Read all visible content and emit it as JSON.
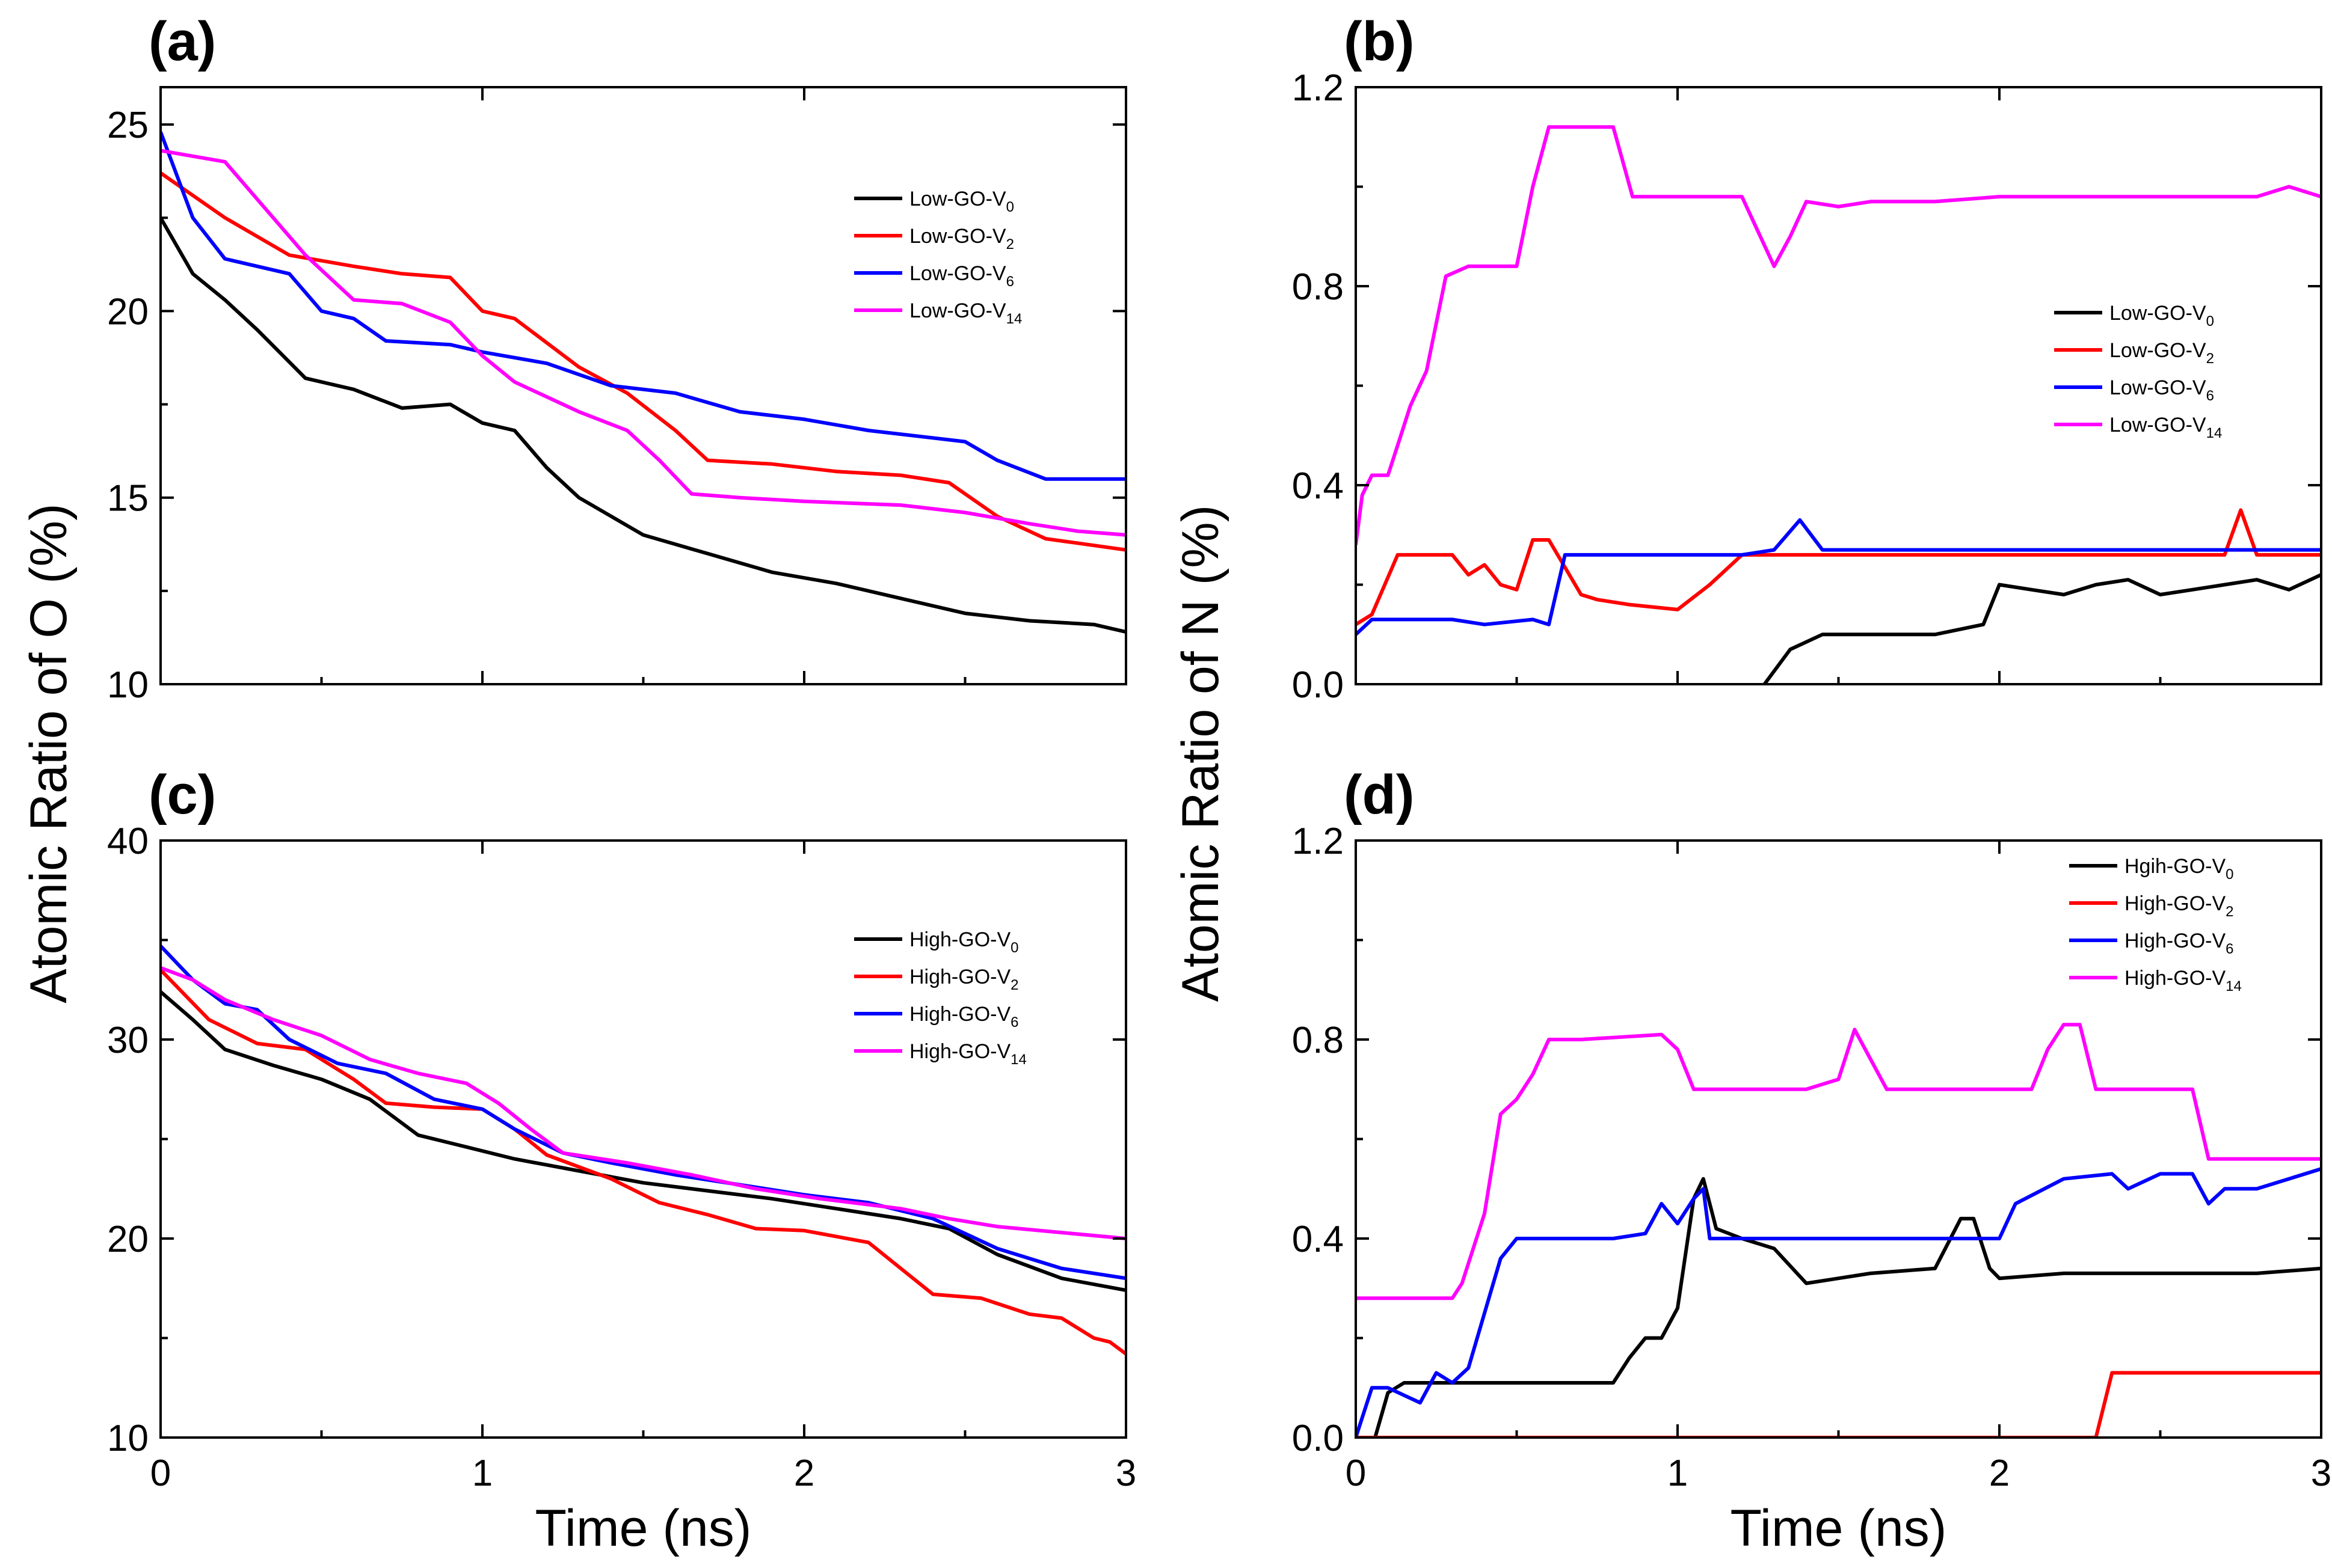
{
  "figure": {
    "ylabel_left": "Atomic Ratio of O (%)",
    "ylabel_right": "Atomic Ratio of N (%)",
    "xlabel": "Time (ns)"
  },
  "chart_data": [
    {
      "id": "a",
      "type": "line",
      "panel_label": "(a)",
      "xlabel": "",
      "ylabel": "Atomic Ratio of O (%)",
      "xlim": [
        0,
        3
      ],
      "ylim": [
        10,
        26
      ],
      "xticks": [
        0,
        1,
        2,
        3
      ],
      "yticks": [
        10,
        15,
        20,
        25
      ],
      "show_xtick_labels": false,
      "legend_position": "top-right",
      "series": [
        {
          "name": "Low-GO-V0",
          "base": "Low-GO-V",
          "sub": "0",
          "color": "#000000",
          "x": [
            0,
            0.1,
            0.2,
            0.3,
            0.45,
            0.6,
            0.75,
            0.9,
            1.0,
            1.1,
            1.2,
            1.3,
            1.5,
            1.7,
            1.9,
            2.1,
            2.3,
            2.5,
            2.7,
            2.9,
            3.0
          ],
          "y": [
            22.5,
            21.0,
            20.3,
            19.5,
            18.2,
            17.9,
            17.4,
            17.5,
            17.0,
            16.8,
            15.8,
            15.0,
            14.0,
            13.5,
            13.0,
            12.7,
            12.3,
            11.9,
            11.7,
            11.6,
            11.4
          ]
        },
        {
          "name": "Low-GO-V2",
          "base": "Low-GO-V",
          "sub": "2",
          "color": "#ff0000",
          "x": [
            0,
            0.2,
            0.4,
            0.6,
            0.75,
            0.9,
            1.0,
            1.1,
            1.3,
            1.45,
            1.6,
            1.7,
            1.9,
            2.1,
            2.3,
            2.45,
            2.6,
            2.75,
            3.0
          ],
          "y": [
            23.7,
            22.5,
            21.5,
            21.2,
            21.0,
            20.9,
            20.0,
            19.8,
            18.5,
            17.8,
            16.8,
            16.0,
            15.9,
            15.7,
            15.6,
            15.4,
            14.5,
            13.9,
            13.6
          ]
        },
        {
          "name": "Low-GO-V6",
          "base": "Low-GO-V",
          "sub": "6",
          "color": "#0000ff",
          "x": [
            0,
            0.1,
            0.2,
            0.4,
            0.5,
            0.6,
            0.7,
            0.9,
            1.0,
            1.2,
            1.4,
            1.6,
            1.8,
            2.0,
            2.2,
            2.5,
            2.6,
            2.75,
            3.0
          ],
          "y": [
            24.8,
            22.5,
            21.4,
            21.0,
            20.0,
            19.8,
            19.2,
            19.1,
            18.9,
            18.6,
            18.0,
            17.8,
            17.3,
            17.1,
            16.8,
            16.5,
            16.0,
            15.5,
            15.5
          ]
        },
        {
          "name": "Low-GO-V14",
          "base": "Low-GO-V",
          "sub": "14",
          "color": "#ff00ff",
          "x": [
            0,
            0.2,
            0.3,
            0.45,
            0.6,
            0.75,
            0.9,
            1.0,
            1.1,
            1.3,
            1.45,
            1.55,
            1.65,
            1.8,
            2.0,
            2.3,
            2.5,
            2.7,
            2.85,
            3.0
          ],
          "y": [
            24.3,
            24.0,
            23.0,
            21.5,
            20.3,
            20.2,
            19.7,
            18.8,
            18.1,
            17.3,
            16.8,
            16.0,
            15.1,
            15.0,
            14.9,
            14.8,
            14.6,
            14.3,
            14.1,
            14.0
          ]
        }
      ]
    },
    {
      "id": "b",
      "type": "line",
      "panel_label": "(b)",
      "xlabel": "",
      "ylabel": "Atomic Ratio of N (%)",
      "xlim": [
        0,
        3
      ],
      "ylim": [
        0,
        1.2
      ],
      "xticks": [
        0,
        1,
        2,
        3
      ],
      "yticks": [
        0.0,
        0.4,
        0.8,
        1.2
      ],
      "show_xtick_labels": false,
      "legend_position": "middle-right",
      "series": [
        {
          "name": "Low-GO-V0",
          "base": "Low-GO-V",
          "sub": "0",
          "color": "#000000",
          "x": [
            1.27,
            1.35,
            1.45,
            1.6,
            1.8,
            1.95,
            2.0,
            2.1,
            2.2,
            2.3,
            2.4,
            2.5,
            2.6,
            2.7,
            2.8,
            2.9,
            3.0
          ],
          "y": [
            0.0,
            0.07,
            0.1,
            0.1,
            0.1,
            0.12,
            0.2,
            0.19,
            0.18,
            0.2,
            0.21,
            0.18,
            0.19,
            0.2,
            0.21,
            0.19,
            0.22
          ]
        },
        {
          "name": "Low-GO-V2",
          "base": "Low-GO-V",
          "sub": "2",
          "color": "#ff0000",
          "x": [
            0,
            0.05,
            0.13,
            0.3,
            0.35,
            0.4,
            0.45,
            0.5,
            0.55,
            0.6,
            0.7,
            0.75,
            0.85,
            1.0,
            1.1,
            1.2,
            2.7,
            2.75,
            2.8,
            3.0
          ],
          "y": [
            0.12,
            0.14,
            0.26,
            0.26,
            0.22,
            0.24,
            0.2,
            0.19,
            0.29,
            0.29,
            0.18,
            0.17,
            0.16,
            0.15,
            0.2,
            0.26,
            0.26,
            0.35,
            0.26,
            0.26
          ]
        },
        {
          "name": "Low-GO-V6",
          "base": "Low-GO-V",
          "sub": "6",
          "color": "#0000ff",
          "x": [
            0,
            0.05,
            0.3,
            0.4,
            0.55,
            0.6,
            0.65,
            0.8,
            1.0,
            1.2,
            1.3,
            1.38,
            1.45,
            3.0
          ],
          "y": [
            0.1,
            0.13,
            0.13,
            0.12,
            0.13,
            0.12,
            0.26,
            0.26,
            0.26,
            0.26,
            0.27,
            0.33,
            0.27,
            0.27
          ]
        },
        {
          "name": "Low-GO-V14",
          "base": "Low-GO-V",
          "sub": "14",
          "color": "#ff00ff",
          "x": [
            0,
            0.02,
            0.05,
            0.1,
            0.13,
            0.17,
            0.22,
            0.28,
            0.35,
            0.5,
            0.55,
            0.6,
            0.8,
            0.83,
            0.86,
            1.0,
            1.1,
            1.2,
            1.3,
            1.35,
            1.4,
            1.5,
            1.6,
            1.8,
            2.0,
            2.2,
            2.4,
            2.6,
            2.8,
            2.9,
            3.0
          ],
          "y": [
            0.28,
            0.38,
            0.42,
            0.42,
            0.48,
            0.56,
            0.63,
            0.82,
            0.84,
            0.84,
            1.0,
            1.12,
            1.12,
            1.05,
            0.98,
            0.98,
            0.98,
            0.98,
            0.84,
            0.9,
            0.97,
            0.96,
            0.97,
            0.97,
            0.98,
            0.98,
            0.98,
            0.98,
            0.98,
            1.0,
            0.98
          ]
        }
      ]
    },
    {
      "id": "c",
      "type": "line",
      "panel_label": "(c)",
      "xlabel": "Time (ns)",
      "ylabel": "Atomic Ratio of O (%)",
      "xlim": [
        0,
        3
      ],
      "ylim": [
        10,
        40
      ],
      "xticks": [
        0,
        1,
        2,
        3
      ],
      "yticks": [
        10,
        20,
        30,
        40
      ],
      "show_xtick_labels": true,
      "legend_position": "top-right",
      "series": [
        {
          "name": "High-GO-V0",
          "base": "High-GO-V",
          "sub": "0",
          "color": "#000000",
          "x": [
            0,
            0.1,
            0.2,
            0.35,
            0.5,
            0.65,
            0.8,
            0.95,
            1.1,
            1.3,
            1.5,
            1.7,
            1.9,
            2.1,
            2.3,
            2.45,
            2.6,
            2.8,
            3.0
          ],
          "y": [
            32.4,
            31.0,
            29.5,
            28.7,
            28.0,
            27.0,
            25.2,
            24.6,
            24.0,
            23.4,
            22.8,
            22.4,
            22.0,
            21.5,
            21.0,
            20.5,
            19.2,
            18.0,
            17.4
          ]
        },
        {
          "name": "High-GO-V2",
          "base": "High-GO-V",
          "sub": "2",
          "color": "#ff0000",
          "x": [
            0,
            0.15,
            0.3,
            0.45,
            0.6,
            0.7,
            0.85,
            1.0,
            1.1,
            1.2,
            1.4,
            1.55,
            1.7,
            1.85,
            2.0,
            2.2,
            2.3,
            2.4,
            2.55,
            2.7,
            2.8,
            2.9,
            2.95,
            3.0
          ],
          "y": [
            33.5,
            31.0,
            29.8,
            29.5,
            28.0,
            26.8,
            26.6,
            26.5,
            25.5,
            24.2,
            23.0,
            21.8,
            21.2,
            20.5,
            20.4,
            19.8,
            18.5,
            17.2,
            17.0,
            16.2,
            16.0,
            15.0,
            14.8,
            14.2
          ]
        },
        {
          "name": "High-GO-V6",
          "base": "High-GO-V",
          "sub": "6",
          "color": "#0000ff",
          "x": [
            0,
            0.1,
            0.2,
            0.3,
            0.4,
            0.55,
            0.7,
            0.85,
            1.0,
            1.1,
            1.25,
            1.4,
            1.6,
            1.8,
            2.0,
            2.2,
            2.4,
            2.6,
            2.8,
            3.0
          ],
          "y": [
            34.7,
            33.0,
            31.8,
            31.5,
            30.0,
            28.8,
            28.3,
            27.0,
            26.5,
            25.5,
            24.3,
            23.8,
            23.2,
            22.7,
            22.2,
            21.8,
            21.0,
            19.5,
            18.5,
            18.0
          ]
        },
        {
          "name": "High-GO-V14",
          "base": "High-GO-V",
          "sub": "14",
          "color": "#ff00ff",
          "x": [
            0,
            0.1,
            0.2,
            0.35,
            0.5,
            0.65,
            0.8,
            0.95,
            1.05,
            1.15,
            1.25,
            1.45,
            1.65,
            1.85,
            2.05,
            2.3,
            2.45,
            2.6,
            2.8,
            3.0
          ],
          "y": [
            33.6,
            33.0,
            32.0,
            31.0,
            30.2,
            29.0,
            28.3,
            27.8,
            26.8,
            25.5,
            24.3,
            23.8,
            23.2,
            22.5,
            22.0,
            21.5,
            21.0,
            20.6,
            20.3,
            20.0
          ]
        }
      ]
    },
    {
      "id": "d",
      "type": "line",
      "panel_label": "(d)",
      "xlabel": "Time (ns)",
      "ylabel": "Atomic Ratio of N (%)",
      "xlim": [
        0,
        3
      ],
      "ylim": [
        0,
        1.2
      ],
      "xticks": [
        0,
        1,
        2,
        3
      ],
      "yticks": [
        0.0,
        0.4,
        0.8,
        1.2
      ],
      "show_xtick_labels": true,
      "legend_position": "top-right",
      "series": [
        {
          "name": "Hgih-GO-V0",
          "base": "Hgih-GO-V",
          "sub": "0",
          "color": "#000000",
          "x": [
            0.06,
            0.1,
            0.15,
            0.3,
            0.6,
            0.8,
            0.85,
            0.9,
            0.95,
            1.0,
            1.05,
            1.08,
            1.12,
            1.2,
            1.3,
            1.4,
            1.5,
            1.6,
            1.8,
            1.88,
            1.92,
            1.97,
            2.0,
            2.2,
            2.5,
            2.8,
            3.0
          ],
          "y": [
            0.0,
            0.09,
            0.11,
            0.11,
            0.11,
            0.11,
            0.16,
            0.2,
            0.2,
            0.26,
            0.48,
            0.52,
            0.42,
            0.4,
            0.38,
            0.31,
            0.32,
            0.33,
            0.34,
            0.44,
            0.44,
            0.34,
            0.32,
            0.33,
            0.33,
            0.33,
            0.34
          ]
        },
        {
          "name": "High-GO-V2",
          "base": "High-GO-V",
          "sub": "2",
          "color": "#ff0000",
          "x": [
            0,
            2.3,
            2.35,
            3.0
          ],
          "y": [
            0.0,
            0.0,
            0.13,
            0.13
          ]
        },
        {
          "name": "High-GO-V6",
          "base": "High-GO-V",
          "sub": "6",
          "color": "#0000ff",
          "x": [
            0,
            0.05,
            0.1,
            0.2,
            0.25,
            0.3,
            0.35,
            0.4,
            0.45,
            0.5,
            0.6,
            0.8,
            0.9,
            0.95,
            1.0,
            1.05,
            1.08,
            1.1,
            1.2,
            1.5,
            1.8,
            2.0,
            2.05,
            2.2,
            2.35,
            2.4,
            2.5,
            2.6,
            2.65,
            2.7,
            2.8,
            2.9,
            3.0
          ],
          "y": [
            0.0,
            0.1,
            0.1,
            0.07,
            0.13,
            0.11,
            0.14,
            0.25,
            0.36,
            0.4,
            0.4,
            0.4,
            0.41,
            0.47,
            0.43,
            0.48,
            0.5,
            0.4,
            0.4,
            0.4,
            0.4,
            0.4,
            0.47,
            0.52,
            0.53,
            0.5,
            0.53,
            0.53,
            0.47,
            0.5,
            0.5,
            0.52,
            0.54
          ]
        },
        {
          "name": "High-GO-V14",
          "base": "High-GO-V",
          "sub": "14",
          "color": "#ff00ff",
          "x": [
            0,
            0.3,
            0.33,
            0.4,
            0.45,
            0.5,
            0.55,
            0.6,
            0.7,
            0.95,
            1.0,
            1.05,
            1.4,
            1.5,
            1.55,
            1.6,
            1.65,
            2.1,
            2.15,
            2.2,
            2.25,
            2.3,
            2.6,
            2.65,
            3.0
          ],
          "y": [
            0.28,
            0.28,
            0.31,
            0.45,
            0.65,
            0.68,
            0.73,
            0.8,
            0.8,
            0.81,
            0.78,
            0.7,
            0.7,
            0.72,
            0.82,
            0.76,
            0.7,
            0.7,
            0.78,
            0.83,
            0.83,
            0.7,
            0.7,
            0.56,
            0.56
          ]
        }
      ]
    }
  ]
}
